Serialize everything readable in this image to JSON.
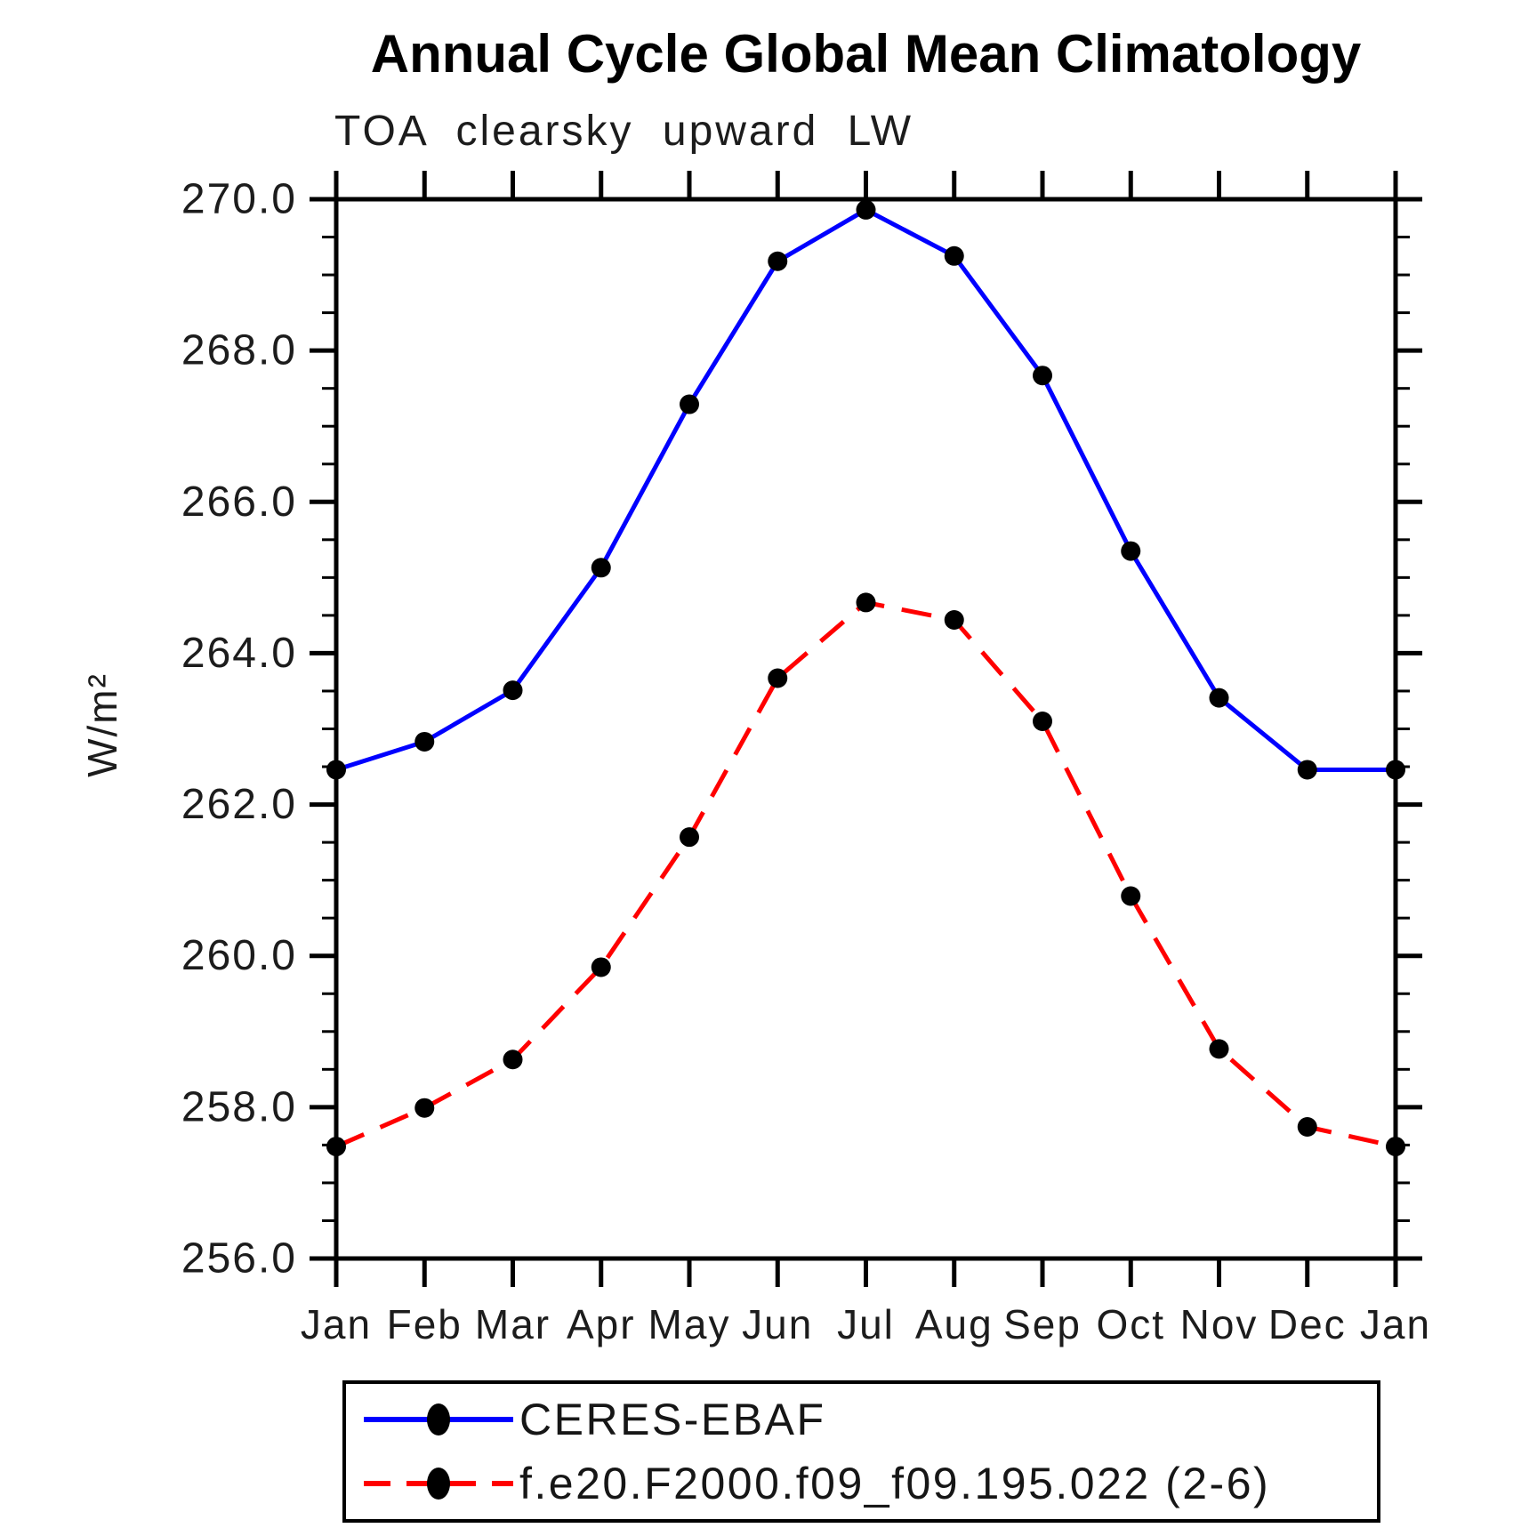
{
  "chart": {
    "title": "Annual Cycle Global Mean Climatology",
    "subtitle": "TOA clearsky upward LW",
    "ylabel": "W/m²"
  },
  "chart_data": {
    "type": "line",
    "title": "Annual Cycle Global Mean Climatology",
    "subtitle": "TOA clearsky upward LW",
    "xlabel": "",
    "ylabel": "W/m²",
    "x_categories": [
      "Jan",
      "Feb",
      "Mar",
      "Apr",
      "May",
      "Jun",
      "Jul",
      "Aug",
      "Sep",
      "Oct",
      "Nov",
      "Dec",
      "Jan"
    ],
    "series": [
      {
        "name": "CERES-EBAF",
        "color": "#0000ff",
        "line_style": "solid",
        "marker": "filled-circle",
        "marker_color": "#000000",
        "values": [
          262.46,
          262.83,
          263.51,
          265.13,
          267.29,
          269.18,
          269.86,
          269.25,
          267.67,
          265.35,
          263.41,
          262.46,
          262.46
        ]
      },
      {
        "name": "f.e20.F2000.f09_f09.195.022 (2-6)",
        "color": "#ff0000",
        "line_style": "dashed",
        "marker": "filled-circle",
        "marker_color": "#000000",
        "values": [
          257.48,
          257.99,
          258.63,
          259.85,
          261.57,
          263.67,
          264.67,
          264.44,
          263.1,
          260.79,
          258.77,
          257.74,
          257.48
        ]
      }
    ],
    "ylim": [
      256.0,
      270.0
    ],
    "y_major_tick_labels": [
      "256.0",
      "258.0",
      "260.0",
      "262.0",
      "264.0",
      "266.0",
      "268.0",
      "270.0"
    ],
    "y_major_step": 2.0,
    "y_minor_step": 0.5,
    "grid": false,
    "legend_position": "bottom",
    "axis_color": "#000000"
  }
}
